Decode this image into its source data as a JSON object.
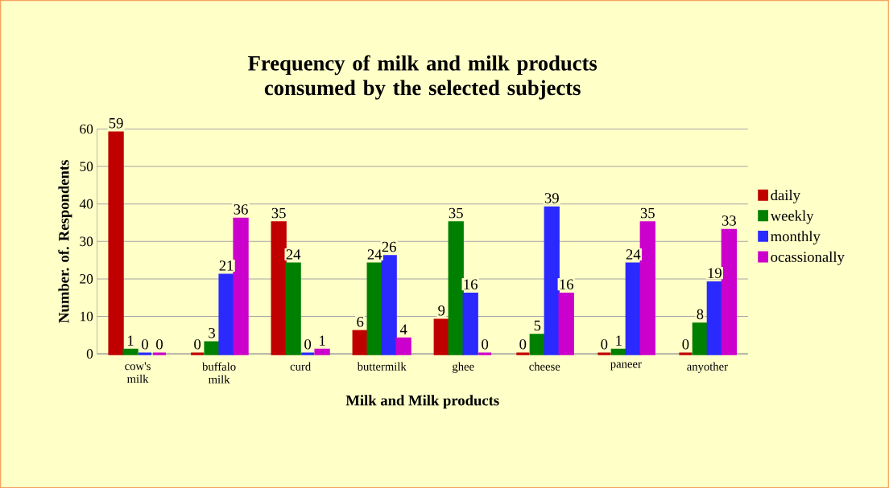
{
  "chart_data": {
    "type": "bar",
    "title": "Frequency of milk and milk products consumed by the selected subjects",
    "xlabel": "Milk and Milk products",
    "ylabel": "Number. of. Respondents",
    "categories": [
      "cow's milk",
      "buffalo milk",
      "curd",
      "buttermilk",
      "ghee",
      "cheese",
      "paneer",
      "anyother"
    ],
    "series": [
      {
        "name": "daily",
        "color": "#c00000",
        "values": [
          59,
          0,
          35,
          6,
          9,
          0,
          0,
          0
        ]
      },
      {
        "name": "weekly",
        "color": "#008000",
        "values": [
          1,
          3,
          24,
          24,
          35,
          5,
          1,
          8
        ]
      },
      {
        "name": "monthly",
        "color": "#2a2aff",
        "values": [
          0,
          21,
          0,
          26,
          16,
          39,
          24,
          19
        ]
      },
      {
        "name": "ocassionally",
        "color": "#cc00cc",
        "values": [
          0,
          36,
          1,
          4,
          0,
          16,
          35,
          33
        ]
      }
    ],
    "ylim": [
      0,
      60
    ],
    "yticks": [
      0,
      10,
      20,
      30,
      40,
      50,
      60
    ],
    "grid": "y",
    "legend": "right",
    "data_labels": true
  }
}
